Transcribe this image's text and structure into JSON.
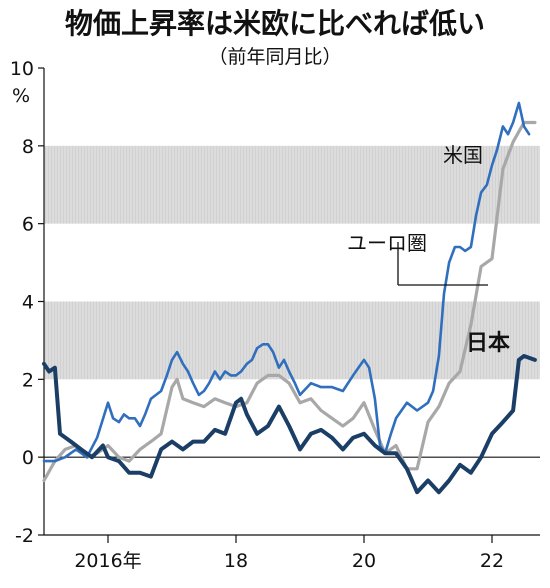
{
  "chart_data": {
    "type": "line",
    "title": "物価上昇率は米欧に比べれば低い",
    "subtitle": "（前年同月比）",
    "ylabel": "%",
    "ylim": [
      -2,
      10
    ],
    "yticks": [
      -2,
      0,
      2,
      4,
      6,
      8,
      10
    ],
    "xlim": [
      2015.0,
      2022.75
    ],
    "xticks": [
      {
        "value": 2016,
        "label": "2016年"
      },
      {
        "value": 2018,
        "label": "18"
      },
      {
        "value": 2020,
        "label": "20"
      },
      {
        "value": 2022,
        "label": "22"
      }
    ],
    "shaded_bands": [
      [
        2,
        4
      ],
      [
        6,
        8
      ]
    ],
    "colors": {
      "us": "#2f6fbd",
      "euro": "#a8a8a8",
      "japan": "#1b3e66",
      "band": "#dcdcdc",
      "grid": "#bdbdbd"
    },
    "series": [
      {
        "key": "us",
        "name": "米国",
        "x": [
          2015.0,
          2015.17,
          2015.33,
          2015.5,
          2015.67,
          2015.83,
          2016.0,
          2016.08,
          2016.17,
          2016.25,
          2016.33,
          2016.42,
          2016.5,
          2016.58,
          2016.67,
          2016.75,
          2016.83,
          2016.92,
          2017.0,
          2017.08,
          2017.17,
          2017.25,
          2017.33,
          2017.42,
          2017.5,
          2017.58,
          2017.67,
          2017.75,
          2017.83,
          2017.92,
          2018.0,
          2018.08,
          2018.17,
          2018.25,
          2018.33,
          2018.42,
          2018.5,
          2018.58,
          2018.67,
          2018.75,
          2018.83,
          2018.92,
          2019.0,
          2019.17,
          2019.33,
          2019.5,
          2019.67,
          2019.83,
          2020.0,
          2020.08,
          2020.17,
          2020.25,
          2020.33,
          2020.42,
          2020.5,
          2020.67,
          2020.83,
          2021.0,
          2021.08,
          2021.17,
          2021.25,
          2021.33,
          2021.42,
          2021.5,
          2021.58,
          2021.67,
          2021.75,
          2021.83,
          2021.92,
          2022.0,
          2022.08,
          2022.17,
          2022.25,
          2022.33,
          2022.42,
          2022.5,
          2022.58
        ],
        "values": [
          -0.1,
          -0.1,
          0.0,
          0.2,
          0.0,
          0.5,
          1.4,
          1.0,
          0.9,
          1.1,
          1.0,
          1.0,
          0.8,
          1.1,
          1.5,
          1.6,
          1.7,
          2.1,
          2.5,
          2.7,
          2.4,
          2.2,
          1.9,
          1.6,
          1.7,
          1.9,
          2.2,
          2.0,
          2.2,
          2.1,
          2.1,
          2.2,
          2.4,
          2.5,
          2.8,
          2.9,
          2.9,
          2.7,
          2.3,
          2.5,
          2.2,
          1.9,
          1.6,
          1.9,
          1.8,
          1.8,
          1.7,
          2.1,
          2.5,
          2.3,
          1.5,
          0.3,
          0.1,
          0.6,
          1.0,
          1.4,
          1.2,
          1.4,
          1.7,
          2.6,
          4.2,
          5.0,
          5.4,
          5.4,
          5.3,
          5.4,
          6.2,
          6.8,
          7.0,
          7.5,
          7.9,
          8.5,
          8.3,
          8.6,
          9.1,
          8.5,
          8.3
        ]
      },
      {
        "key": "euro",
        "name": "ユーロ圏",
        "x": [
          2015.0,
          2015.17,
          2015.33,
          2015.5,
          2015.67,
          2015.83,
          2016.0,
          2016.17,
          2016.33,
          2016.5,
          2016.67,
          2016.83,
          2017.0,
          2017.08,
          2017.17,
          2017.33,
          2017.5,
          2017.67,
          2017.83,
          2018.0,
          2018.17,
          2018.33,
          2018.5,
          2018.67,
          2018.83,
          2019.0,
          2019.17,
          2019.33,
          2019.5,
          2019.67,
          2019.83,
          2020.0,
          2020.17,
          2020.33,
          2020.5,
          2020.67,
          2020.83,
          2021.0,
          2021.17,
          2021.33,
          2021.5,
          2021.67,
          2021.83,
          2022.0,
          2022.17,
          2022.33,
          2022.5,
          2022.67
        ],
        "values": [
          -0.6,
          -0.1,
          0.2,
          0.3,
          0.0,
          0.1,
          0.3,
          0.0,
          -0.1,
          0.2,
          0.4,
          0.6,
          1.8,
          2.0,
          1.5,
          1.4,
          1.3,
          1.5,
          1.4,
          1.3,
          1.4,
          1.9,
          2.1,
          2.1,
          1.9,
          1.4,
          1.5,
          1.2,
          1.0,
          0.8,
          1.0,
          1.4,
          0.7,
          0.1,
          0.3,
          -0.3,
          -0.3,
          0.9,
          1.3,
          1.9,
          2.2,
          3.4,
          4.9,
          5.1,
          7.4,
          8.1,
          8.6,
          8.6
        ]
      },
      {
        "key": "japan",
        "name": "日本",
        "x": [
          2015.0,
          2015.08,
          2015.17,
          2015.25,
          2015.42,
          2015.58,
          2015.75,
          2015.92,
          2016.0,
          2016.17,
          2016.33,
          2016.5,
          2016.67,
          2016.83,
          2017.0,
          2017.17,
          2017.33,
          2017.5,
          2017.67,
          2017.83,
          2018.0,
          2018.08,
          2018.17,
          2018.33,
          2018.5,
          2018.67,
          2018.83,
          2019.0,
          2019.17,
          2019.33,
          2019.5,
          2019.67,
          2019.83,
          2020.0,
          2020.17,
          2020.33,
          2020.5,
          2020.67,
          2020.83,
          2021.0,
          2021.17,
          2021.33,
          2021.5,
          2021.67,
          2021.83,
          2022.0,
          2022.17,
          2022.33,
          2022.42,
          2022.5,
          2022.67
        ],
        "values": [
          2.4,
          2.2,
          2.3,
          0.6,
          0.4,
          0.2,
          0.0,
          0.3,
          0.0,
          -0.1,
          -0.4,
          -0.4,
          -0.5,
          0.2,
          0.4,
          0.2,
          0.4,
          0.4,
          0.7,
          0.6,
          1.4,
          1.5,
          1.1,
          0.6,
          0.8,
          1.3,
          0.8,
          0.2,
          0.6,
          0.7,
          0.5,
          0.2,
          0.5,
          0.6,
          0.3,
          0.1,
          0.1,
          -0.3,
          -0.9,
          -0.6,
          -0.9,
          -0.6,
          -0.2,
          -0.4,
          0.0,
          0.6,
          0.9,
          1.2,
          2.5,
          2.6,
          2.5
        ]
      }
    ]
  }
}
